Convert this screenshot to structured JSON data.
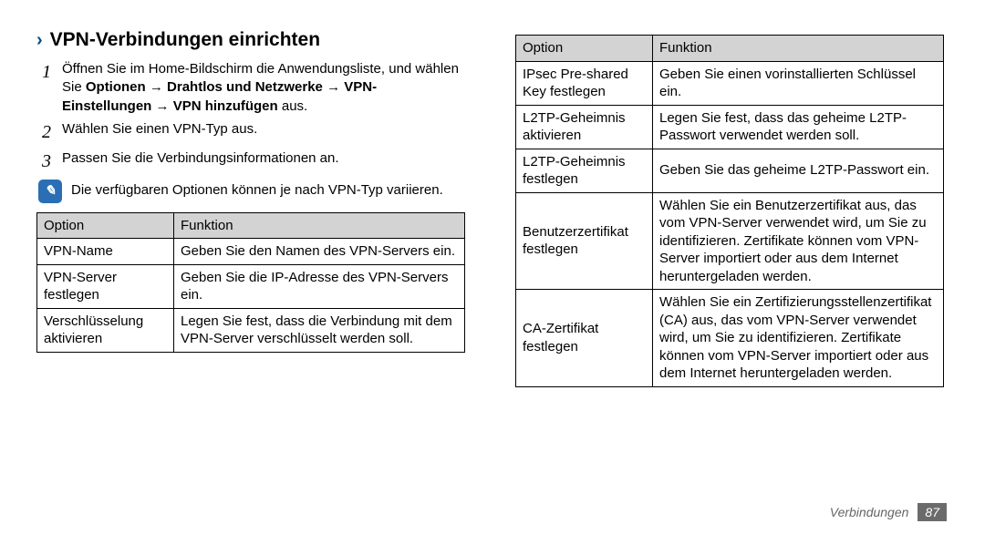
{
  "heading": "VPN-Verbindungen einrichten",
  "steps": {
    "s1_pre": "Öffnen Sie im Home-Bildschirm die Anwendungsliste, und wählen Sie ",
    "s1_b1": "Optionen",
    "s1_arr": " → ",
    "s1_b2": "Drahtlos und Netzwerke",
    "s1_b3": "VPN-Einstellungen",
    "s1_b4": "VPN hinzufügen",
    "s1_post": " aus.",
    "s2": "Wählen Sie einen VPN-Typ aus.",
    "s3": "Passen Sie die Verbindungsinformationen an."
  },
  "note": "Die verfügbaren Optionen können je nach VPN-Typ variieren.",
  "headers": {
    "opt": "Option",
    "fn": "Funktion"
  },
  "t1": [
    {
      "o": "VPN-Name",
      "f": "Geben Sie den Namen des VPN-Servers ein."
    },
    {
      "o": "VPN-Server festlegen",
      "f": "Geben Sie die IP-Adresse des VPN-Servers ein."
    },
    {
      "o": "Verschlüsselung aktivieren",
      "f": "Legen Sie fest, dass die Verbindung mit dem VPN-Server verschlüsselt werden soll."
    }
  ],
  "t2": [
    {
      "o": "IPsec Pre-shared Key festlegen",
      "f": "Geben Sie einen vorinstallierten Schlüssel ein."
    },
    {
      "o": "L2TP-Geheimnis aktivieren",
      "f": "Legen Sie fest, dass das geheime L2TP-Passwort verwendet werden soll."
    },
    {
      "o": "L2TP-Geheimnis festlegen",
      "f": "Geben Sie das geheime L2TP-Passwort ein."
    },
    {
      "o": "Benutzerzertifikat festlegen",
      "f": "Wählen Sie ein Benutzerzertifikat aus, das vom VPN-Server verwendet wird, um Sie zu identifizieren. Zertifikate können vom VPN-Server importiert oder aus dem Internet heruntergeladen werden."
    },
    {
      "o": "CA-Zertifikat festlegen",
      "f": "Wählen Sie ein Zertifizierungs­stellenzertifikat (CA) aus, das vom VPN-Server verwendet wird, um Sie zu identifizieren. Zertifikate können vom VPN-Server importiert oder aus dem Internet heruntergeladen werden."
    }
  ],
  "footer": {
    "section": "Verbindungen",
    "page": "87"
  },
  "note_glyph": "✎"
}
